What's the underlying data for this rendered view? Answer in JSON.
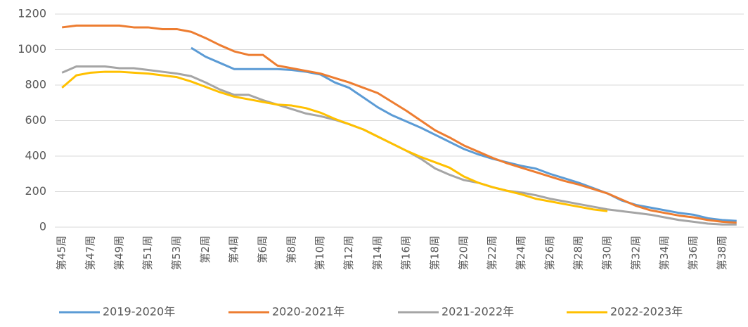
{
  "chart_data": {
    "type": "line",
    "categories": [
      "第45周",
      null,
      "第47周",
      null,
      "第49周",
      null,
      "第51周",
      null,
      "第53周",
      null,
      "第2周",
      null,
      "第4周",
      null,
      "第6周",
      null,
      "第8周",
      null,
      "第10周",
      null,
      "第12周",
      null,
      "第14周",
      null,
      "第16周",
      null,
      "第18周",
      null,
      "第20周",
      null,
      "第22周",
      null,
      "第24周",
      null,
      "第26周",
      null,
      "第28周",
      null,
      "第30周",
      null,
      "第32周",
      null,
      "第34周",
      null,
      "第36周",
      null,
      "第38周",
      null
    ],
    "series": [
      {
        "name": "2019-2020年",
        "color": "#5b9bd5",
        "values": [
          null,
          null,
          null,
          null,
          null,
          null,
          null,
          null,
          null,
          1010,
          960,
          925,
          890,
          890,
          890,
          890,
          885,
          875,
          860,
          815,
          785,
          730,
          675,
          630,
          595,
          560,
          520,
          480,
          440,
          410,
          385,
          365,
          345,
          330,
          300,
          275,
          250,
          220,
          190,
          150,
          125,
          110,
          95,
          80,
          70,
          50,
          40,
          35
        ]
      },
      {
        "name": "2020-2021年",
        "color": "#ed7d31",
        "values": [
          1125,
          1135,
          1135,
          1135,
          1135,
          1125,
          1125,
          1115,
          1115,
          1100,
          1065,
          1025,
          990,
          970,
          970,
          910,
          895,
          880,
          865,
          840,
          815,
          785,
          755,
          705,
          655,
          600,
          545,
          505,
          460,
          425,
          390,
          360,
          335,
          310,
          285,
          260,
          240,
          215,
          190,
          155,
          120,
          95,
          80,
          65,
          55,
          40,
          30,
          25
        ]
      },
      {
        "name": "2021-2022年",
        "color": "#a5a5a5",
        "values": [
          870,
          905,
          905,
          905,
          895,
          895,
          885,
          875,
          865,
          850,
          815,
          775,
          745,
          745,
          715,
          690,
          665,
          640,
          625,
          605,
          580,
          550,
          510,
          470,
          430,
          385,
          330,
          295,
          265,
          250,
          225,
          205,
          195,
          180,
          160,
          145,
          130,
          115,
          100,
          90,
          80,
          70,
          55,
          40,
          30,
          20,
          15,
          15
        ]
      },
      {
        "name": "2022-2023年",
        "color": "#ffc000",
        "values": [
          785,
          855,
          870,
          875,
          875,
          870,
          865,
          855,
          845,
          820,
          790,
          760,
          735,
          720,
          705,
          690,
          685,
          670,
          645,
          610,
          580,
          550,
          510,
          470,
          430,
          395,
          365,
          335,
          285,
          250,
          225,
          205,
          185,
          160,
          145,
          130,
          115,
          100,
          90,
          null,
          null,
          null,
          null,
          null,
          null,
          null,
          null,
          null
        ]
      }
    ],
    "ylim": [
      0,
      1200
    ],
    "yticks": [
      0,
      200,
      400,
      600,
      800,
      1000,
      1200
    ],
    "grid": true
  }
}
